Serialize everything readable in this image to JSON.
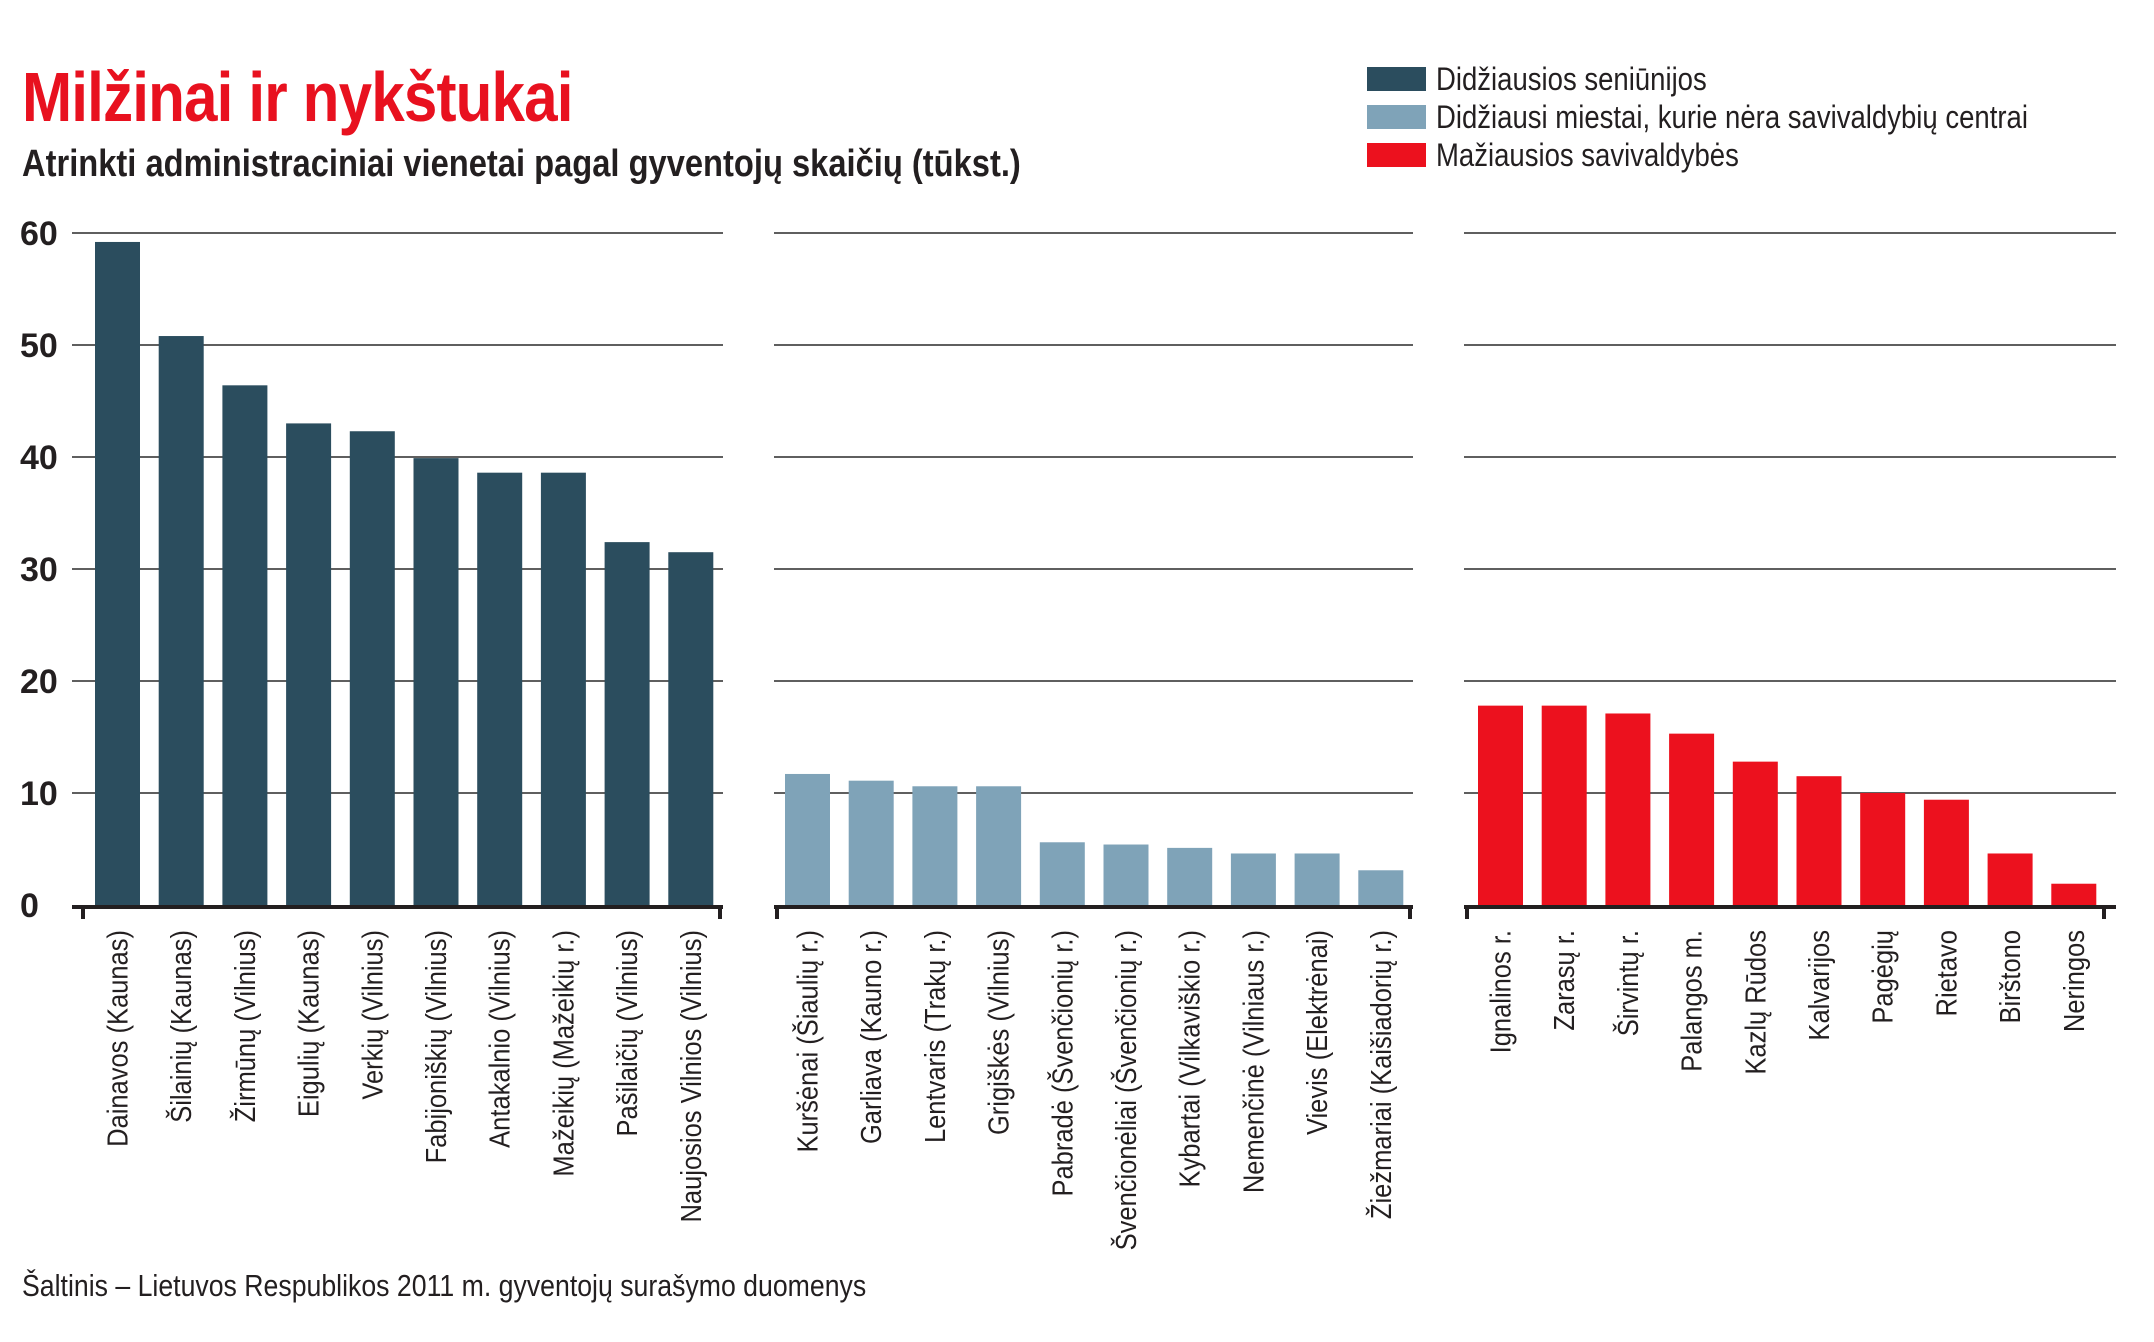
{
  "title": "Milžinai ir nykštukai",
  "subtitle": "Atrinkti administraciniai vienetai pagal gyventojų skaičių (tūkst.)",
  "source": "Šaltinis – Lietuvos Respublikos 2011 m. gyventojų surašymo duomenys",
  "legend": [
    {
      "label": "Didžiausios seniūnijos",
      "color": "#2b4d5e"
    },
    {
      "label": "Didžiausi miestai, kurie nėra savivaldybių centrai",
      "color": "#7fa3b8"
    },
    {
      "label": "Mažiausios savivaldybės",
      "color": "#ec111e"
    }
  ],
  "chart_data": {
    "type": "bar",
    "title": "Milžinai ir nykštukai",
    "subtitle": "Atrinkti administraciniai vienetai pagal gyventojų skaičių (tūkst.)",
    "xlabel": "",
    "ylabel": "",
    "ylim": [
      0,
      60
    ],
    "yticks": [
      0,
      10,
      20,
      30,
      40,
      50,
      60
    ],
    "ytick_labels": [
      "0",
      "10",
      "20",
      "30",
      "40",
      "50",
      "60"
    ],
    "grid": true,
    "legend_position": "top-right",
    "series": [
      {
        "name": "Didžiausios seniūnijos",
        "color": "#2b4d5e",
        "categories": [
          "Dainavos (Kaunas)",
          "Šilainių (Kaunas)",
          "Žirmūnų (Vilnius)",
          "Eigulių (Kaunas)",
          "Verkių (Vilnius)",
          "Fabijoniškių (Vilnius)",
          "Antakalnio (Vilnius)",
          "Mažeikių (Mažeikių r.)",
          "Pašilaičių (Vilnius)",
          "Naujosios Vilnios (Vilnius)"
        ],
        "values": [
          59.2,
          50.8,
          46.4,
          43.0,
          42.3,
          39.9,
          38.6,
          38.6,
          32.4,
          31.5
        ]
      },
      {
        "name": "Didžiausi miestai, kurie nėra savivaldybių centrai",
        "color": "#7fa3b8",
        "categories": [
          "Kuršėnai (Šiaulių r.)",
          "Garliava (Kauno r.)",
          "Lentvaris (Trakų r.)",
          "Grigiškės (Vilnius)",
          "Pabradė (Švenčionių r.)",
          "Švenčionėliai (Švenčionių r.)",
          "Kybartai (Vilkaviškio r.)",
          "Nemenčinė (Vilniaus r.)",
          "Vievis (Elektrėnai)",
          "Žiežmariai (Kaišiadorių r.)"
        ],
        "values": [
          11.7,
          11.1,
          10.6,
          10.6,
          5.6,
          5.4,
          5.1,
          4.6,
          4.6,
          3.1
        ]
      },
      {
        "name": "Mažiausios savivaldybės",
        "color": "#ec111e",
        "categories": [
          "Ignalinos r.",
          "Zarasų r.",
          "Širvintų r.",
          "Palangos m.",
          "Kazlų Rūdos",
          "Kalvarijos",
          "Pagėgių",
          "Rietavo",
          "Birštono",
          "Neringos"
        ],
        "values": [
          17.8,
          17.8,
          17.1,
          15.3,
          12.8,
          11.5,
          10.0,
          9.4,
          4.6,
          1.9
        ]
      }
    ]
  }
}
